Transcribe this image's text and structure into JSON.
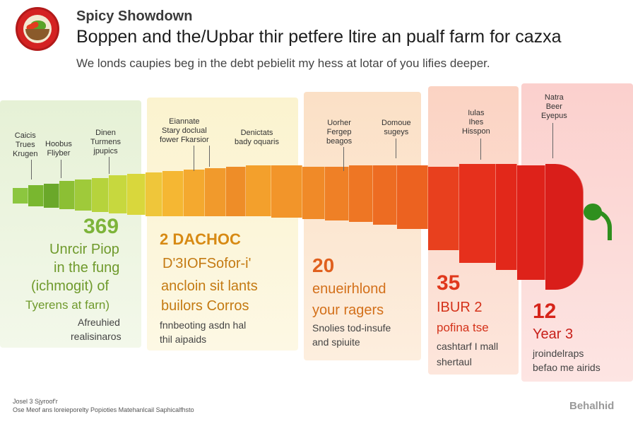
{
  "brand": "Spicy Showdown",
  "title": "Boppen and the/Upbar thir petfere ltire an pualf farm for cazxa",
  "subtitle": "We londs caupies beg in the debt pebielit my hess at lotar of you lifies deeper.",
  "colors": {
    "panel1": "#e6f1d6",
    "panel2": "#fbf3cf",
    "panel3": "#fbe0c6",
    "panel4": "#fbd3c3",
    "panel5": "#fbd0cd",
    "green": "#6aaa2a",
    "orange": "#e8901e",
    "red": "#d6241a",
    "stem": "#2f8f1e"
  },
  "annotations": [
    {
      "id": "a1",
      "text": "Caicis\nTrues\nKrugen"
    },
    {
      "id": "a2",
      "text": "Hoobus\nFliyber"
    },
    {
      "id": "a3",
      "text": "Dinen\nTurmens\njpupics"
    },
    {
      "id": "a4",
      "text": "Eiannate\nStary doclual\nfower Fkarsior"
    },
    {
      "id": "a5",
      "text": "Denictats\nbady oquaris"
    },
    {
      "id": "a6",
      "text": "Uorher\nFergep\nbeagos"
    },
    {
      "id": "a7",
      "text": "Domoue\nsugeys"
    },
    {
      "id": "a8",
      "text": "Iulas\nIhes\nHisspon"
    },
    {
      "id": "a9",
      "text": "Natra\nBeer\nEyepus"
    }
  ],
  "sections": [
    {
      "stat": "369",
      "lines": [
        "Unrcir Piop",
        "in the fung",
        "(ichmogit) of",
        "Tyerens at farn)"
      ],
      "note": [
        "Afreuhied",
        "realisinaros"
      ]
    },
    {
      "stat": "2 DACHOC",
      "lines": [
        "D'3IOFSofor-i'",
        "ancloin sit lants",
        "builors Corros"
      ],
      "note": [
        "fnnbeoting asdn hal",
        "thil aipaids"
      ]
    },
    {
      "stat": "20",
      "lines": [
        "enueirhlond",
        "your ragers"
      ],
      "note": [
        "Snolies tod-insufe",
        "and spiuite"
      ]
    },
    {
      "stat": "35",
      "lines": [
        "IBUR 2",
        "pofina tse"
      ],
      "note": [
        "cashtarf I mall",
        "shertaul"
      ]
    },
    {
      "stat": "12",
      "lines": [
        "Year 3"
      ],
      "note": [
        "jroindelraps",
        "befao me airids"
      ]
    }
  ],
  "footer": [
    "Josel 3 Sjyroof'r",
    "Ose Meof ans loreieporelty Popioties Matehanlcail Saphicalfhsto"
  ],
  "badge": "Behalhid"
}
